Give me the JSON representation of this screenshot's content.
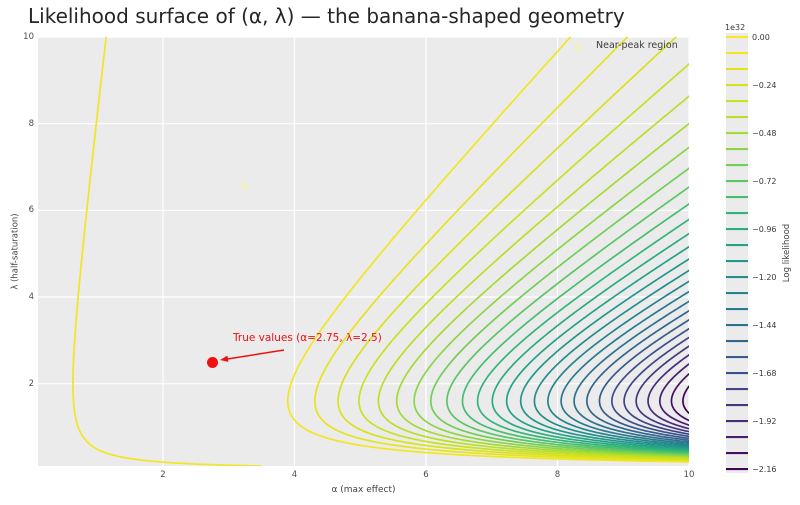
{
  "figure": {
    "title": "Likelihood surface of (α, λ) — the banana-shaped geometry"
  },
  "chart_data": {
    "type": "contour",
    "title": "Likelihood surface of (α, λ) — the banana-shaped geometry",
    "xlabel": "α (max effect)",
    "ylabel": "λ (half-saturation)",
    "xlim": [
      0.1,
      10
    ],
    "ylim": [
      0.1,
      10
    ],
    "x_axis": {
      "tick_values": [
        2,
        4,
        6,
        8,
        10
      ],
      "tick_labels": [
        "2",
        "4",
        "6",
        "8",
        "10"
      ]
    },
    "y_axis": {
      "tick_values": [
        2,
        4,
        6,
        8,
        10
      ],
      "tick_labels": [
        "2",
        "4",
        "6",
        "8",
        "10"
      ]
    },
    "grid": true,
    "background_color": "#ebebec",
    "gridline_color": "#ffffff",
    "colormap": "viridis",
    "levels": {
      "unit_scale": "1e32",
      "max": 0.0,
      "min": -2.16,
      "step": 0.08,
      "count": 28
    },
    "colorbar": {
      "label": "Log likelihood",
      "offset_label": "1e32",
      "tick_labels": [
        "0.00",
        "−0.24",
        "−0.48",
        "−0.72",
        "−0.96",
        "−1.20",
        "−1.44",
        "−1.68",
        "−1.92",
        "−2.16"
      ]
    },
    "surface": {
      "description": "Log-likelihood of Emax model E = α·c/(λ+c); broad near-peak plateau over the upper-left, single low-likelihood lobe toward large α with λ≈1.6, banana-shaped nested contours opening to the right",
      "params": {
        "w_c": 1.6,
        "m0": 0.507,
        "C1": 2.04,
        "p1": 1.42,
        "q_c": 2.0,
        "n0": 0.43,
        "A2": 0.12,
        "p2": 2
      }
    },
    "annotations": [
      {
        "text": "True values (α=2.75, λ=2.5)",
        "x": 2.75,
        "y": 2.5,
        "color": "#ee1111"
      },
      {
        "text": "Near-peak region",
        "color": "#3d3d3d"
      }
    ],
    "markers": [
      {
        "kind": "true-values",
        "x": 2.75,
        "y": 2.5,
        "color": "#ee1111",
        "radius": 5.5
      },
      {
        "kind": "near-peak-sample",
        "x": 8.31,
        "y": 9.75,
        "color": "#f2eec9",
        "radius": 4
      },
      {
        "kind": "near-peak-sample",
        "x": 3.25,
        "y": 6.55,
        "color": "#f2eec9",
        "radius": 4
      }
    ]
  }
}
